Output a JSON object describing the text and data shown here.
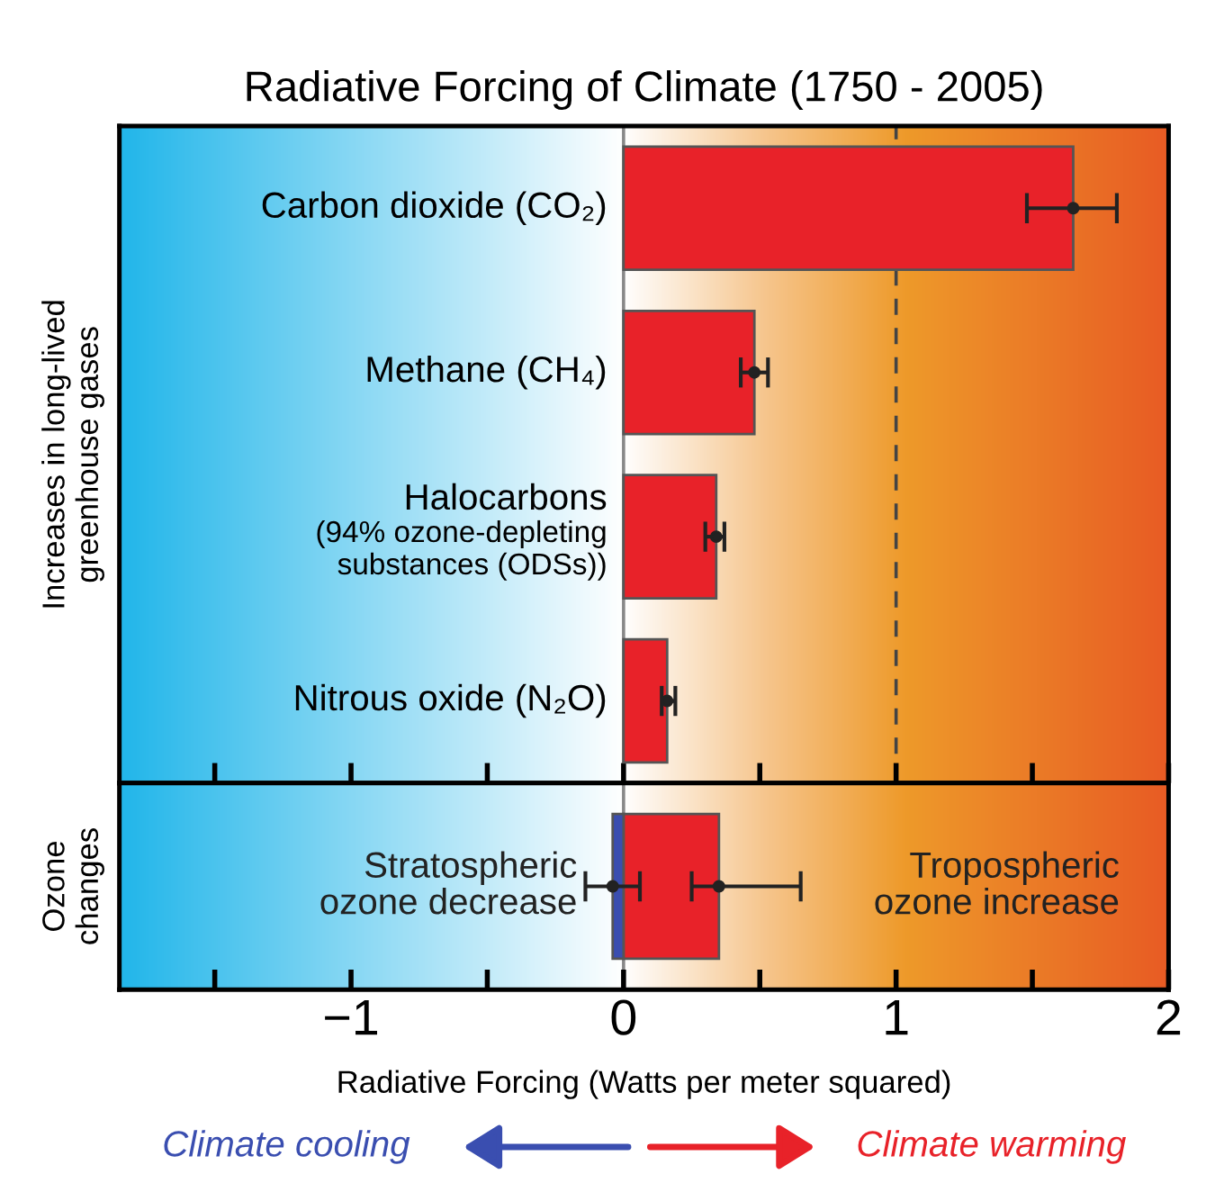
{
  "chart_data": [
    {
      "type": "bar",
      "orientation": "horizontal",
      "title": "Radiative Forcing of Climate (1750 - 2005)",
      "ylabel": "Increases in long-lived\ngreenhouse gases",
      "categories": [
        "Carbon dioxide (CO₂)",
        "Methane (CH₄)",
        "Halocarbons\n(94% ozone-depleting\nsubstances (ODSs))",
        "Nitrous oxide (N₂O)"
      ],
      "series": [
        {
          "color": "#e82229",
          "values": [
            1.65,
            0.48,
            0.34,
            0.16
          ],
          "errors": [
            [
              1.48,
              1.81
            ],
            [
              0.43,
              0.53
            ],
            [
              0.3,
              0.37
            ],
            [
              0.14,
              0.19
            ]
          ]
        }
      ],
      "xlim": [
        -1.85,
        2.0
      ],
      "xticks": [
        {
          "value": -1.5,
          "label": null
        },
        {
          "value": -1,
          "label": null
        },
        {
          "value": -0.5,
          "label": null
        },
        {
          "value": 0,
          "label": null
        },
        {
          "value": 0.5,
          "label": null
        },
        {
          "value": 1,
          "label": null
        },
        {
          "value": 1.5,
          "label": null
        },
        {
          "value": 2,
          "label": null
        }
      ],
      "tick_labels": false,
      "ref_lines": [
        {
          "axis": "x",
          "value": 0,
          "color": "#888888"
        },
        {
          "axis": "x",
          "value": 1,
          "line_style": "dashed",
          "color": "#444444"
        }
      ]
    },
    {
      "type": "bar",
      "orientation": "horizontal",
      "ylabel": "Ozone\nchanges",
      "xlabel": "Radiative Forcing (Watts per meter squared)",
      "categories": [
        null
      ],
      "stacked": true,
      "ref_lines": [
        {
          "axis": "x",
          "value": 0,
          "color": "#888888"
        }
      ],
      "series": [
        {
          "color": "#e82229",
          "values": [
            0.35
          ],
          "errors": [
            [
              0.25,
              0.65
            ]
          ]
        },
        {
          "color": "#3a4eb0",
          "values": [
            -0.04
          ],
          "errors": [
            [
              -0.14,
              0.06
            ]
          ]
        }
      ],
      "xlim": [
        -1.85,
        2.0
      ],
      "xticks": [
        {
          "value": -1.5,
          "label": null
        },
        {
          "value": -1,
          "label": "−1"
        },
        {
          "value": -0.5,
          "label": null
        },
        0,
        {
          "value": 0.5,
          "label": null
        },
        1,
        {
          "value": 1.5,
          "label": null
        },
        2
      ],
      "tick_labels": "x",
      "annotations": [
        "Stratospheric\nozone decrease",
        "Tropospheric\nozone increase",
        "Climate cooling",
        "Climate warming"
      ]
    }
  ]
}
